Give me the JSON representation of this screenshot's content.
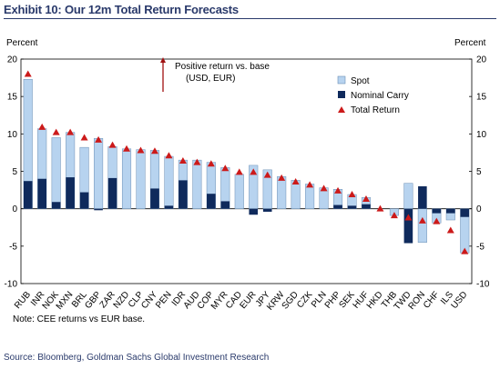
{
  "exhibit_title": "Exhibit 10: Our 12m Total Return Forecasts",
  "note": "Note: CEE returns vs EUR base.",
  "source": "Source: Bloomberg, Goldman Sachs Global Investment Research",
  "annotation": {
    "line1": "Positive return vs. base",
    "line2": "(USD, EUR)"
  },
  "colors": {
    "spot": "#b7d3ef",
    "spot_edge": "#6b8fb5",
    "carry": "#0f2a5c",
    "total": "#cc1a1a",
    "arrow": "#a01010"
  },
  "chart_data": {
    "type": "bar",
    "ylabel_left": "Percent",
    "ylabel_right": "Percent",
    "ylim": [
      -10,
      20
    ],
    "yticks": [
      20,
      15,
      10,
      5,
      0,
      -5,
      -10
    ],
    "legend_position": "top-right",
    "categories": [
      "RUB",
      "INR",
      "NOK",
      "MXN",
      "BRL",
      "GBP",
      "ZAR",
      "NZD",
      "CLP",
      "CNY",
      "PEN",
      "IDR",
      "AUD",
      "COP",
      "MYR",
      "CAD",
      "EUR",
      "JPY",
      "KRW",
      "SGD",
      "CZK",
      "PLN",
      "PHP",
      "SEK",
      "HUF",
      "HKD",
      "THB",
      "TWD",
      "RON",
      "CHF",
      "ILS",
      "USD"
    ],
    "series": [
      {
        "name": "Spot",
        "values": [
          17.3,
          10.7,
          9.5,
          10.2,
          8.2,
          9.4,
          8.3,
          8.0,
          7.9,
          7.8,
          7.0,
          6.5,
          6.5,
          6.2,
          5.5,
          4.6,
          5.8,
          5.2,
          4.3,
          3.8,
          3.3,
          2.8,
          2.6,
          1.9,
          1.5,
          0.0,
          -0.9,
          3.4,
          -4.5,
          -1.9,
          -1.5,
          -5.9
        ]
      },
      {
        "name": "Nominal Carry",
        "values": [
          3.7,
          4.0,
          0.9,
          4.2,
          2.2,
          -0.2,
          4.1,
          0.0,
          0.0,
          2.7,
          0.4,
          3.8,
          0.0,
          2.0,
          1.0,
          0.0,
          -0.8,
          -0.4,
          0.0,
          0.0,
          0.0,
          0.0,
          0.5,
          0.4,
          0.6,
          0.0,
          0.0,
          -4.6,
          3.0,
          -0.6,
          -0.6,
          -1.1
        ]
      },
      {
        "name": "Total Return",
        "values": [
          18.0,
          10.9,
          10.2,
          10.2,
          9.5,
          9.2,
          8.5,
          8.0,
          7.8,
          7.7,
          7.1,
          6.4,
          6.2,
          6.0,
          5.4,
          4.9,
          4.9,
          4.5,
          4.1,
          3.6,
          3.2,
          2.7,
          2.4,
          1.9,
          1.3,
          0.0,
          -0.9,
          -1.2,
          -1.6,
          -1.7,
          -2.9,
          -5.7
        ]
      }
    ]
  }
}
